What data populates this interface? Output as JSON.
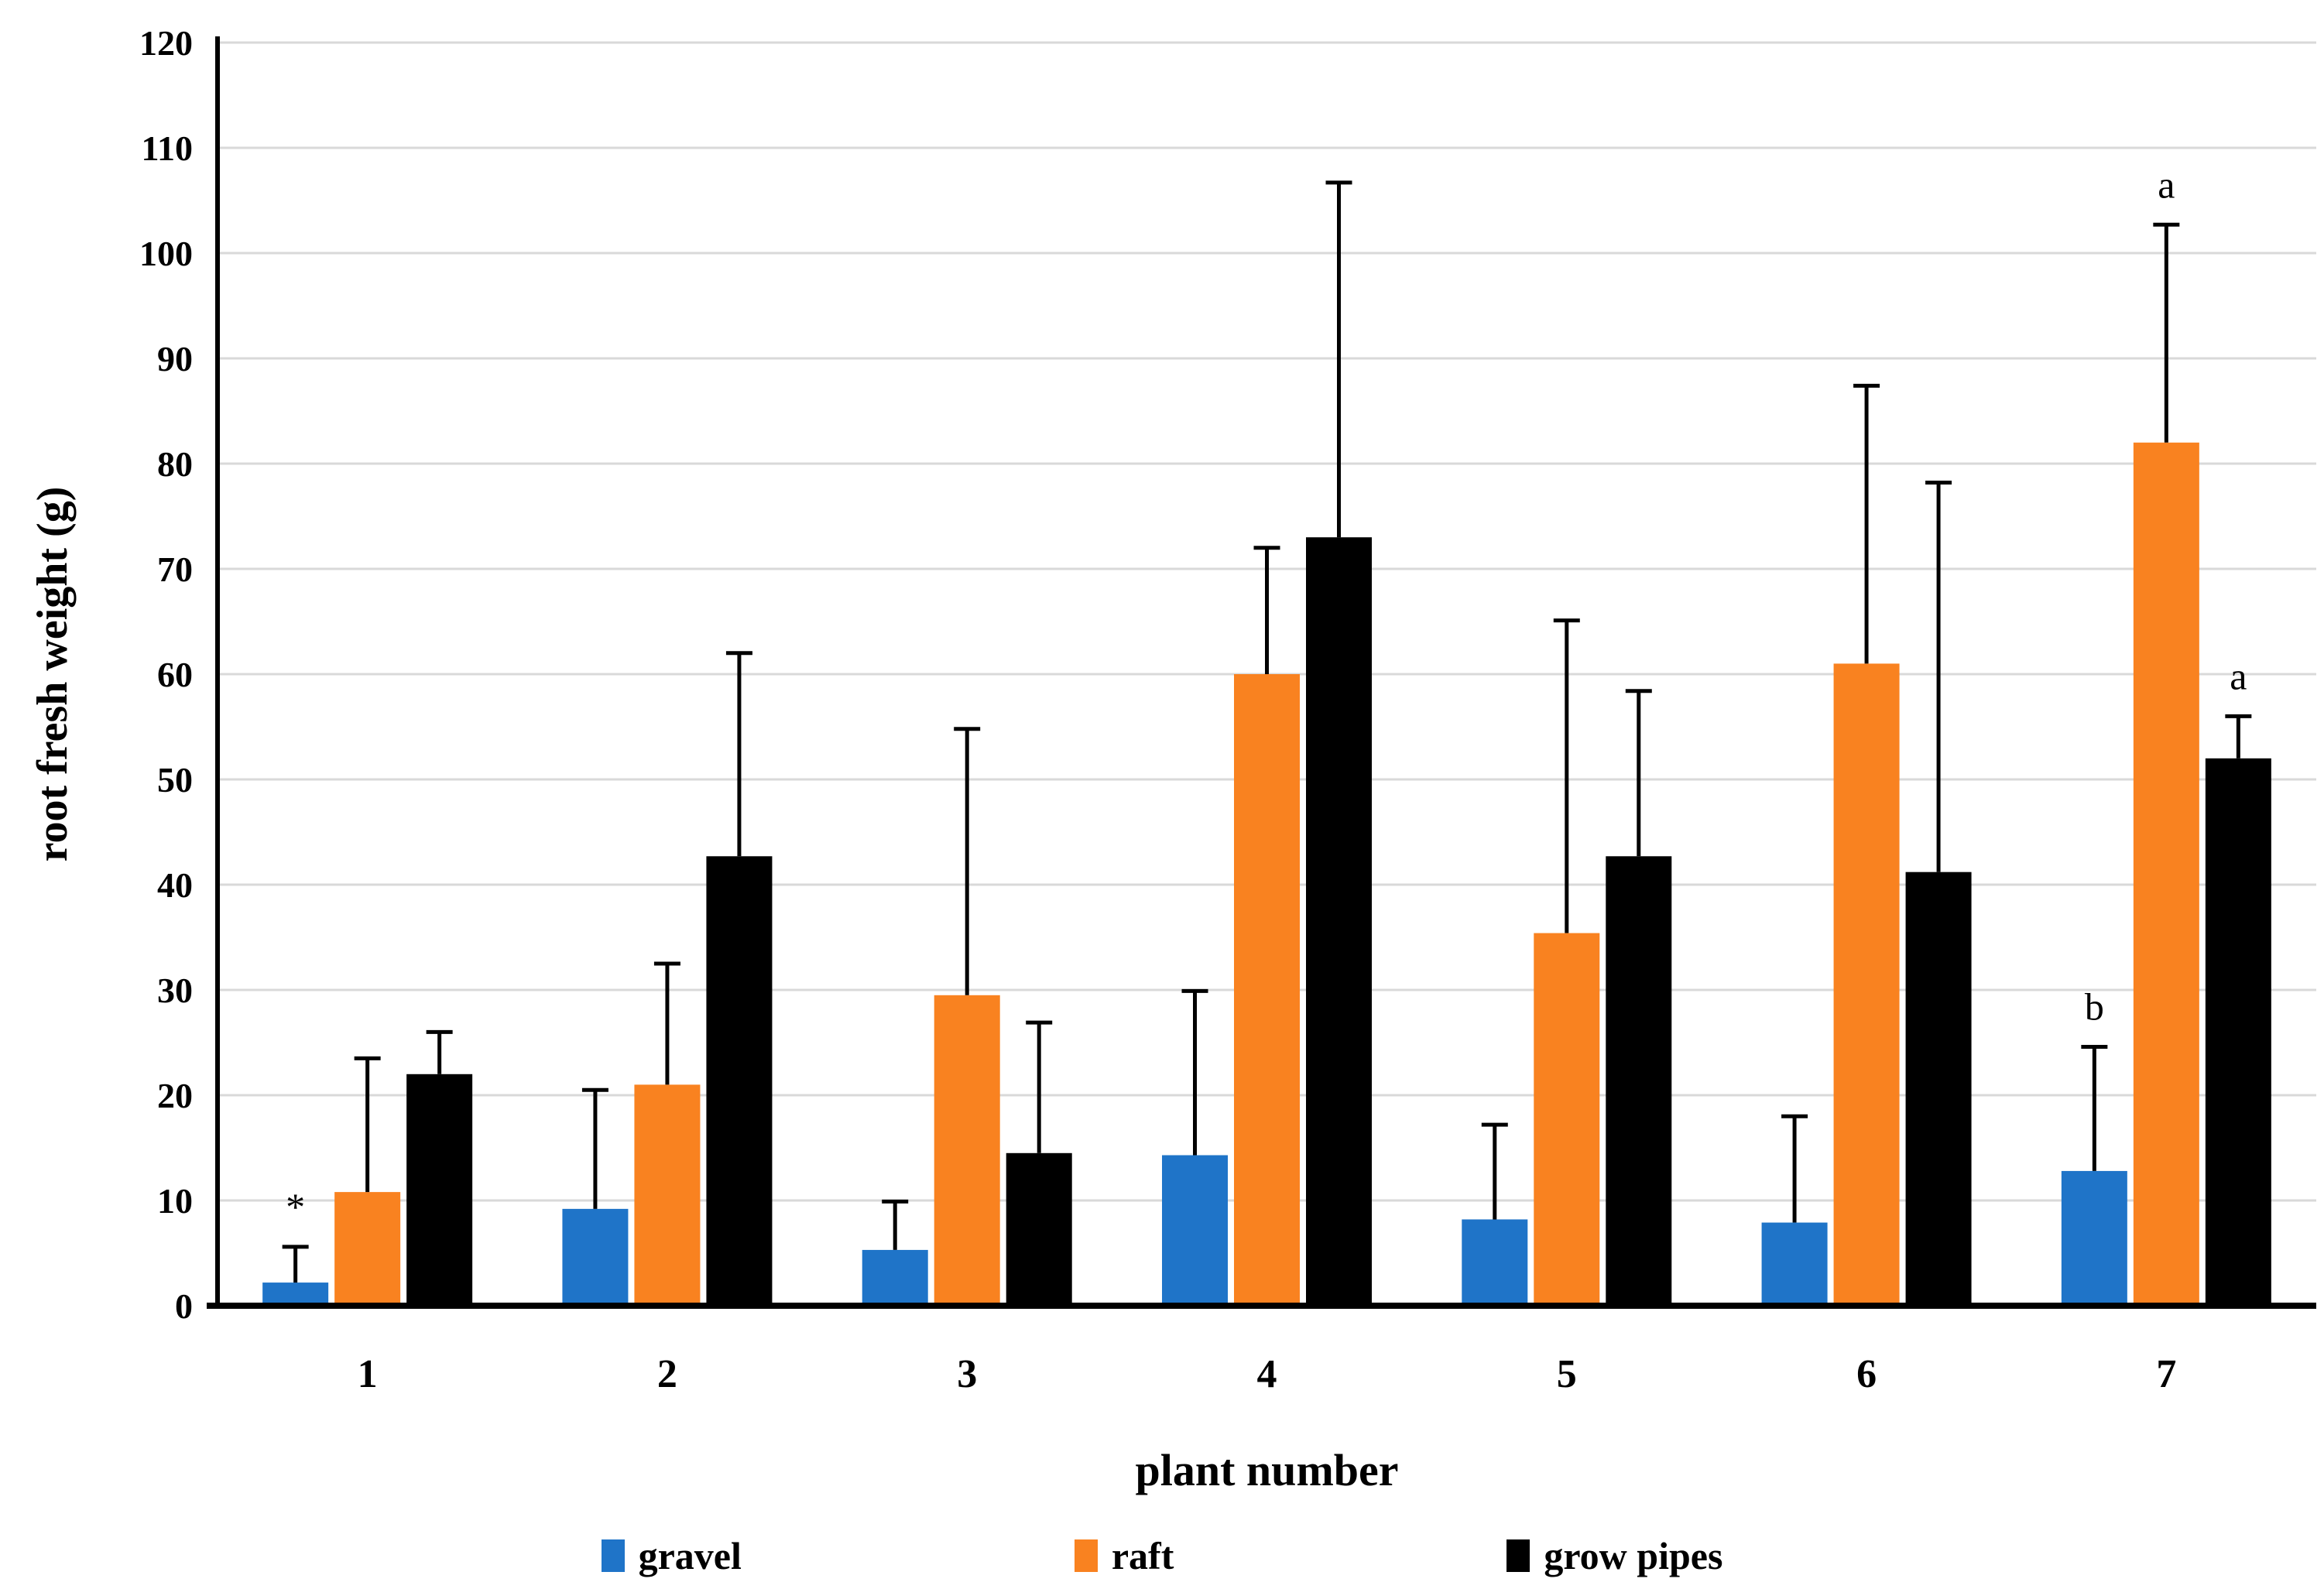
{
  "figure": {
    "background": "#FFFFFF"
  },
  "chart_data": {
    "type": "bar",
    "title": "",
    "xlabel": "plant number",
    "ylabel": "root fresh weight (g)",
    "categories": [
      "1",
      "2",
      "3",
      "4",
      "5",
      "6",
      "7"
    ],
    "ylim": [
      0,
      120
    ],
    "ytick_step": 10,
    "ytick_labels": [
      "0",
      "10",
      "20",
      "30",
      "40",
      "50",
      "60",
      "70",
      "80",
      "90",
      "100",
      "110",
      "120"
    ],
    "grid": "horizontal",
    "gridline_color": "#D9D9D9",
    "axis_color": "#000000",
    "legend_position": "bottom",
    "error_bars": "upper-only",
    "series": [
      {
        "name": "gravel",
        "color": "#1F74C8",
        "values": [
          2.2,
          9.2,
          5.3,
          14.3,
          8.2,
          7.9,
          12.8
        ],
        "error_up": [
          3.4,
          11.3,
          4.6,
          15.6,
          9.0,
          10.1,
          11.8
        ]
      },
      {
        "name": "raft",
        "color": "#F98220",
        "values": [
          10.8,
          21.0,
          29.5,
          60.0,
          35.4,
          61.0,
          82.0
        ],
        "error_up": [
          12.7,
          11.5,
          25.3,
          12.0,
          29.7,
          26.4,
          20.7
        ]
      },
      {
        "name": "grow pipes",
        "color": "#000000",
        "values": [
          22.0,
          42.7,
          14.5,
          73.0,
          42.7,
          41.2,
          52.0
        ],
        "error_up": [
          4.0,
          19.3,
          12.4,
          33.7,
          15.7,
          37.0,
          4.0
        ]
      }
    ],
    "annotations": [
      {
        "text": "*",
        "series_index": 0,
        "category_index": 0
      },
      {
        "text": "b",
        "series_index": 0,
        "category_index": 6
      },
      {
        "text": "a",
        "series_index": 1,
        "category_index": 6
      },
      {
        "text": "a",
        "series_index": 2,
        "category_index": 6
      }
    ]
  }
}
